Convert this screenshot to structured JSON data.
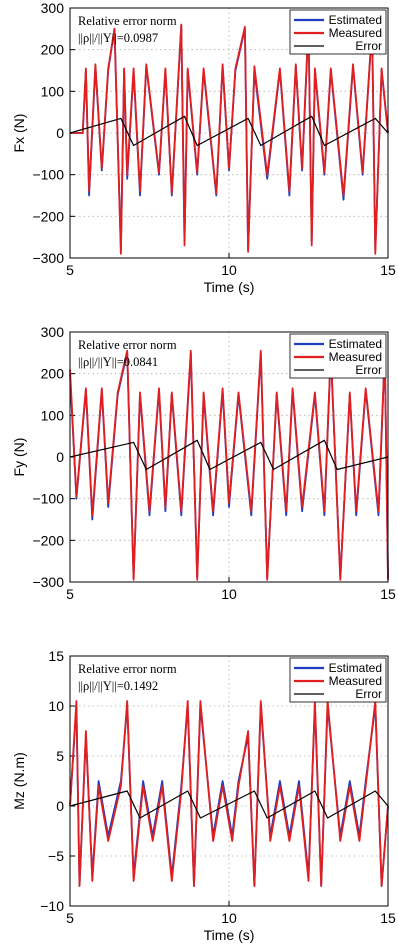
{
  "chart_data": [
    {
      "type": "line",
      "xlabel": "Time (s)",
      "ylabel": "Fx (N)",
      "xlim": [
        5,
        15
      ],
      "ylim": [
        -300,
        300
      ],
      "xticks": [
        "5",
        "10",
        "15"
      ],
      "yticks": [
        "300",
        "200",
        "100",
        "0",
        "−100",
        "−200",
        "−300"
      ],
      "grid": true,
      "annotation": {
        "line1": "Relative error norm",
        "line2": "||ρ||/||Y||=0.0987"
      },
      "legend": {
        "position": "top-right"
      },
      "series": [
        {
          "name": "Estimated",
          "color": "#1f3fbf",
          "x": [
            5.0,
            5.4,
            5.5,
            5.6,
            5.8,
            6.0,
            6.2,
            6.4,
            6.6,
            6.7,
            6.8,
            7.0,
            7.2,
            7.4,
            7.8,
            8.0,
            8.2,
            8.5,
            8.6,
            8.7,
            9.0,
            9.2,
            9.6,
            9.8,
            10.0,
            10.2,
            10.5,
            10.6,
            10.8,
            11.2,
            11.6,
            11.9,
            12.1,
            12.3,
            12.5,
            12.6,
            12.7,
            13.0,
            13.2,
            13.6,
            13.9,
            14.2,
            14.5,
            14.6,
            14.8,
            15.0
          ],
          "values": [
            0,
            0,
            150,
            -150,
            160,
            -90,
            150,
            250,
            -280,
            150,
            -110,
            150,
            -150,
            160,
            -100,
            150,
            -150,
            260,
            -260,
            150,
            -100,
            150,
            -150,
            160,
            -90,
            150,
            250,
            -280,
            150,
            -110,
            150,
            -150,
            160,
            -90,
            260,
            -260,
            150,
            -100,
            150,
            -160,
            160,
            -100,
            250,
            -280,
            150,
            0
          ]
        },
        {
          "name": "Measured",
          "color": "#e02020",
          "x": [
            5.0,
            5.4,
            5.5,
            5.6,
            5.8,
            6.0,
            6.2,
            6.4,
            6.6,
            6.7,
            6.8,
            7.0,
            7.2,
            7.4,
            7.8,
            8.0,
            8.2,
            8.5,
            8.6,
            8.7,
            9.0,
            9.2,
            9.6,
            9.8,
            10.0,
            10.2,
            10.5,
            10.6,
            10.8,
            11.2,
            11.6,
            11.9,
            12.1,
            12.3,
            12.5,
            12.6,
            12.7,
            13.0,
            13.2,
            13.6,
            13.9,
            14.2,
            14.5,
            14.6,
            14.8,
            15.0
          ],
          "values": [
            0,
            0,
            155,
            -140,
            165,
            -85,
            155,
            250,
            -290,
            155,
            -100,
            155,
            -140,
            165,
            -95,
            155,
            -145,
            260,
            -270,
            155,
            -95,
            155,
            -145,
            165,
            -85,
            155,
            255,
            -285,
            160,
            -100,
            155,
            -140,
            165,
            -85,
            265,
            -270,
            155,
            -95,
            155,
            -150,
            165,
            -95,
            255,
            -290,
            155,
            0
          ]
        },
        {
          "name": "Error",
          "color": "#000000",
          "x": [
            5.0,
            6.6,
            7.0,
            8.6,
            9.0,
            10.6,
            11.0,
            12.6,
            13.0,
            14.6,
            15.0
          ],
          "values": [
            0,
            35,
            -30,
            40,
            -30,
            35,
            -30,
            40,
            -30,
            35,
            0
          ]
        }
      ]
    },
    {
      "type": "line",
      "xlabel": "",
      "ylabel": "Fy (N)",
      "xlim": [
        5,
        15
      ],
      "ylim": [
        -300,
        300
      ],
      "xticks": [
        "5",
        "10",
        "15"
      ],
      "yticks": [
        "300",
        "200",
        "100",
        "0",
        "−100",
        "−200",
        "−300"
      ],
      "grid": true,
      "annotation": {
        "line1": "Relative error norm",
        "line2": "||ρ||/||Y||=0.0841"
      },
      "legend": {
        "position": "top-right"
      },
      "series": [
        {
          "name": "Estimated",
          "color": "#1f3fbf",
          "x": [
            5.0,
            5.2,
            5.5,
            5.7,
            6.0,
            6.2,
            6.5,
            6.8,
            7.0,
            7.2,
            7.5,
            7.8,
            8.0,
            8.2,
            8.5,
            8.8,
            9.0,
            9.2,
            9.5,
            9.8,
            10.0,
            10.3,
            10.7,
            11.0,
            11.2,
            11.5,
            11.8,
            12.0,
            12.3,
            12.7,
            13.0,
            13.2,
            13.5,
            13.8,
            14.0,
            14.3,
            14.7,
            14.9,
            15.0
          ],
          "values": [
            200,
            -100,
            160,
            -150,
            160,
            -120,
            150,
            250,
            -290,
            150,
            -140,
            160,
            -130,
            150,
            -140,
            250,
            -290,
            150,
            -140,
            160,
            -120,
            150,
            -140,
            250,
            -290,
            150,
            -140,
            160,
            -130,
            150,
            -140,
            250,
            -290,
            150,
            -140,
            160,
            -140,
            250,
            -290
          ]
        },
        {
          "name": "Measured",
          "color": "#e02020",
          "x": [
            5.0,
            5.2,
            5.5,
            5.7,
            6.0,
            6.2,
            6.5,
            6.8,
            7.0,
            7.2,
            7.5,
            7.8,
            8.0,
            8.2,
            8.5,
            8.8,
            9.0,
            9.2,
            9.5,
            9.8,
            10.0,
            10.3,
            10.7,
            11.0,
            11.2,
            11.5,
            11.8,
            12.0,
            12.3,
            12.7,
            13.0,
            13.2,
            13.5,
            13.8,
            14.0,
            14.3,
            14.7,
            14.9,
            15.0
          ],
          "values": [
            210,
            -95,
            165,
            -140,
            165,
            -110,
            155,
            255,
            -295,
            155,
            -130,
            165,
            -120,
            155,
            -130,
            255,
            -295,
            155,
            -130,
            165,
            -110,
            155,
            -130,
            255,
            -295,
            155,
            -130,
            165,
            -120,
            155,
            -130,
            255,
            -295,
            155,
            -130,
            165,
            -130,
            255,
            -295
          ]
        },
        {
          "name": "Error",
          "color": "#000000",
          "x": [
            5.0,
            7.0,
            7.4,
            9.0,
            9.4,
            11.0,
            11.4,
            13.0,
            13.4,
            15.0
          ],
          "values": [
            0,
            35,
            -30,
            40,
            -30,
            35,
            -30,
            40,
            -30,
            0
          ]
        }
      ]
    },
    {
      "type": "line",
      "xlabel": "Time (s)",
      "ylabel": "Mz (N.m)",
      "xlim": [
        5,
        15
      ],
      "ylim": [
        -10,
        15
      ],
      "xticks": [
        "5",
        "10",
        "15"
      ],
      "yticks": [
        "15",
        "10",
        "5",
        "0",
        "−5",
        "−10"
      ],
      "grid": true,
      "annotation": {
        "line1": "Relative error norm",
        "line2": "||ρ||/||Y||=0.1492"
      },
      "legend": {
        "position": "top-right"
      },
      "series": [
        {
          "name": "Estimated",
          "color": "#1f3fbf",
          "x": [
            5.0,
            5.2,
            5.3,
            5.5,
            5.7,
            5.9,
            6.2,
            6.6,
            6.8,
            7.0,
            7.3,
            7.6,
            7.9,
            8.2,
            8.5,
            8.7,
            8.9,
            9.1,
            9.5,
            9.8,
            10.1,
            10.3,
            10.6,
            10.8,
            11.0,
            11.3,
            11.6,
            11.9,
            12.2,
            12.5,
            12.7,
            12.9,
            13.1,
            13.5,
            13.8,
            14.1,
            14.3,
            14.6,
            14.8,
            15.0
          ],
          "values": [
            0,
            10,
            -8,
            7,
            -7,
            2.5,
            -3,
            2.5,
            10,
            -7,
            2.5,
            -3,
            2.5,
            -7,
            2,
            10,
            -8,
            10,
            -3,
            2.5,
            -3,
            2.5,
            7,
            -8,
            10,
            -3,
            2.5,
            -3,
            2.5,
            -7,
            10,
            -8,
            10,
            -3,
            2.5,
            -3,
            2.5,
            10,
            -8,
            0
          ]
        },
        {
          "name": "Measured",
          "color": "#e02020",
          "x": [
            5.0,
            5.2,
            5.3,
            5.5,
            5.7,
            5.9,
            6.2,
            6.6,
            6.8,
            7.0,
            7.3,
            7.6,
            7.9,
            8.2,
            8.5,
            8.7,
            8.9,
            9.1,
            9.5,
            9.8,
            10.1,
            10.3,
            10.6,
            10.8,
            11.0,
            11.3,
            11.6,
            11.9,
            12.2,
            12.5,
            12.7,
            12.9,
            13.1,
            13.5,
            13.8,
            14.1,
            14.3,
            14.6,
            14.8,
            15.0
          ],
          "values": [
            0,
            10.5,
            -8,
            7.5,
            -7.5,
            2,
            -3.5,
            2,
            10.5,
            -7.5,
            2,
            -3.5,
            2,
            -7.5,
            1.5,
            10.5,
            -8,
            10.5,
            -3.5,
            2,
            -3.5,
            2,
            7.5,
            -8,
            10.5,
            -3.5,
            2,
            -3.5,
            2,
            -7.5,
            10.5,
            -8,
            10.5,
            -3.5,
            2,
            -3.5,
            2,
            10.5,
            -8,
            0
          ]
        },
        {
          "name": "Error",
          "color": "#000000",
          "x": [
            5.0,
            6.8,
            7.2,
            8.7,
            9.1,
            10.8,
            11.2,
            12.7,
            13.1,
            14.6,
            15.0
          ],
          "values": [
            0,
            1.5,
            -1.2,
            1.5,
            -1.2,
            1.5,
            -1.2,
            1.5,
            -1.2,
            1.5,
            0
          ]
        }
      ]
    }
  ]
}
